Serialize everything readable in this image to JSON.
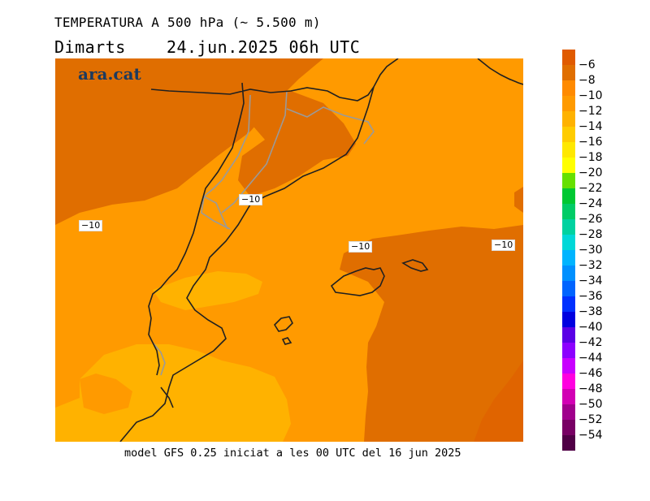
{
  "header": {
    "title": "TEMPERATURA A 500 hPa (~ 5.500 m)",
    "day": "Dimarts",
    "datetime": "24.jun.2025 06h UTC"
  },
  "logo": {
    "text": "ara.cat"
  },
  "footer": {
    "model_info": "model GFS 0.25 iniciat a les 00 UTC del 16 jun 2025"
  },
  "map": {
    "contour_labels": [
      "−10",
      "−10",
      "−10",
      "−10"
    ],
    "colors": {
      "warm_dark": "#e06e00",
      "warm": "#ff9a00",
      "light": "#ffb200"
    }
  },
  "legend": {
    "colors": [
      "#e05a00",
      "#e06e00",
      "#ff8a00",
      "#ff9a00",
      "#ffb200",
      "#ffcc00",
      "#ffe800",
      "#ffff00",
      "#66e000",
      "#00c832",
      "#00cc66",
      "#00d2a0",
      "#00d8d8",
      "#00b4ff",
      "#0090ff",
      "#0064ff",
      "#0030ff",
      "#0000e0",
      "#5a00e6",
      "#8c00ff",
      "#c800ff",
      "#ff00e0",
      "#d200b4",
      "#a0008c",
      "#780064",
      "#500046"
    ],
    "labels": [
      "−6",
      "−8",
      "−10",
      "−12",
      "−14",
      "−16",
      "−18",
      "−20",
      "−22",
      "−24",
      "−26",
      "−28",
      "−30",
      "−32",
      "−34",
      "−36",
      "−38",
      "−40",
      "−42",
      "−44",
      "−46",
      "−48",
      "−50",
      "−52",
      "−54"
    ]
  }
}
